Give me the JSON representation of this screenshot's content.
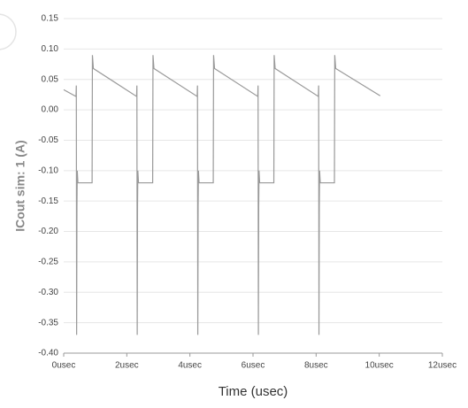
{
  "chart_data": {
    "type": "line",
    "x_label": "Time (usec)",
    "y_label": "ICout sim: 1 (A)",
    "x": [
      0,
      0.39,
      0.4,
      0.41,
      0.42,
      0.43,
      0.45,
      0.9,
      0.91,
      0.94,
      2.31,
      2.32,
      2.33,
      2.34,
      2.35,
      2.37,
      2.82,
      2.83,
      2.86,
      4.23,
      4.24,
      4.25,
      4.26,
      4.27,
      4.29,
      4.74,
      4.75,
      4.78,
      6.15,
      6.16,
      6.17,
      6.18,
      6.19,
      6.21,
      6.66,
      6.67,
      6.7,
      8.07,
      8.08,
      8.09,
      8.1,
      8.11,
      8.13,
      8.58,
      8.59,
      8.62,
      10.03
    ],
    "series": [
      {
        "color": "#999999",
        "values": [
          0.033,
          0.022,
          0.04,
          -0.37,
          -0.16,
          -0.1,
          -0.12,
          -0.12,
          0.09,
          0.068,
          0.022,
          0.04,
          -0.37,
          -0.16,
          -0.1,
          -0.12,
          -0.12,
          0.09,
          0.068,
          0.022,
          0.04,
          -0.37,
          -0.16,
          -0.1,
          -0.12,
          -0.12,
          0.09,
          0.068,
          0.022,
          0.04,
          -0.37,
          -0.16,
          -0.1,
          -0.12,
          -0.12,
          0.09,
          0.068,
          0.022,
          0.04,
          -0.37,
          -0.16,
          -0.1,
          -0.12,
          -0.12,
          0.09,
          0.068,
          0.023
        ]
      }
    ],
    "xlim": [
      0,
      12
    ],
    "xticks": [
      {
        "value": 0,
        "label": "0usec"
      },
      {
        "value": 2,
        "label": "2usec"
      },
      {
        "value": 4,
        "label": "4usec"
      },
      {
        "value": 6,
        "label": "6usec"
      },
      {
        "value": 8,
        "label": "8usec"
      },
      {
        "value": 10,
        "label": "10usec"
      },
      {
        "value": 12,
        "label": "12usec"
      }
    ],
    "ylim": [
      -0.4,
      0.15
    ],
    "yticks": [
      {
        "value": 0.15,
        "label": "0.15"
      },
      {
        "value": 0.1,
        "label": "0.10"
      },
      {
        "value": 0.05,
        "label": "0.05"
      },
      {
        "value": 0,
        "label": "0.00"
      },
      {
        "value": -0.05,
        "label": "-0.05"
      },
      {
        "value": -0.1,
        "label": "-0.10"
      },
      {
        "value": -0.15,
        "label": "-0.15"
      },
      {
        "value": -0.2,
        "label": "-0.20"
      },
      {
        "value": -0.25,
        "label": "-0.25"
      },
      {
        "value": -0.3,
        "label": "-0.30"
      },
      {
        "value": -0.35,
        "label": "-0.35"
      },
      {
        "value": -0.4,
        "label": "-0.40"
      }
    ],
    "grid": true
  }
}
